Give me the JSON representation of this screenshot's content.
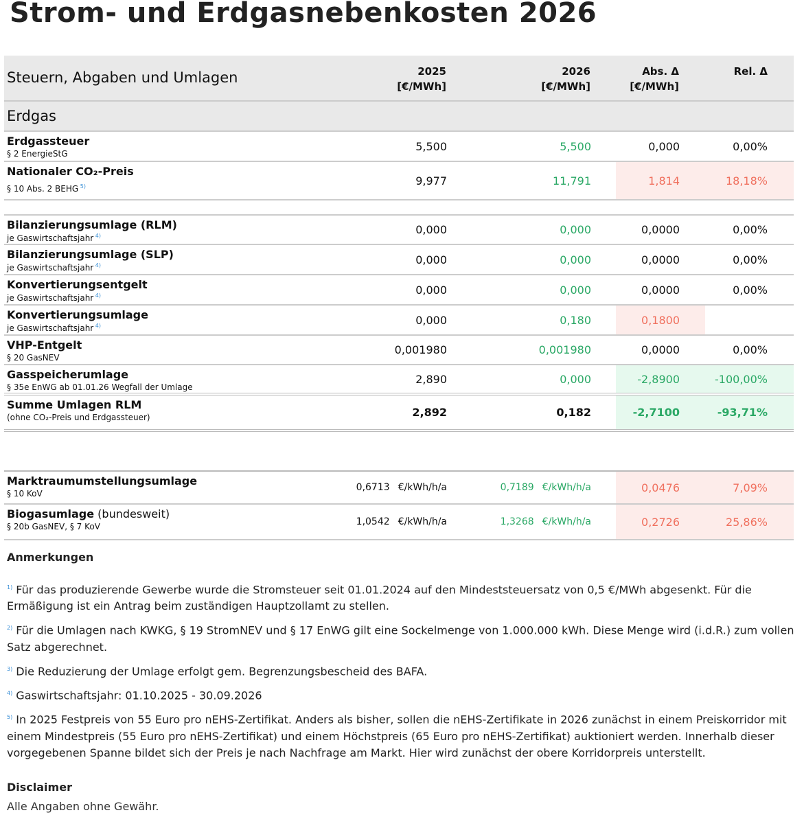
{
  "title": "Strom- und Erdgasnebenkosten 2026",
  "header": {
    "label": "Steuern, Abgaben und Umlagen",
    "col_2025": [
      "2025",
      "[€/MWh]"
    ],
    "col_2026": [
      "2026",
      "[€/MWh]"
    ],
    "col_abs": [
      "Abs. Δ",
      "[€/MWh]"
    ],
    "col_rel": [
      "Rel. Δ"
    ]
  },
  "section": "Erdgas",
  "colors": {
    "green": "#2aa865",
    "red": "#f0705e",
    "red_bg": "#fdecea",
    "green_bg": "#e6f9ee"
  },
  "rows": [
    {
      "title": "Erdgassteuer",
      "sub": "§ 2 EnergieStG",
      "v2025": "5,500",
      "v2026": "5,500",
      "abs": "0,000",
      "rel": "0,00%",
      "trend": ""
    },
    {
      "title": "Nationaler CO₂-Preis",
      "sub": "§ 10 Abs. 2 BEHG",
      "note": "5)",
      "v2025": "9,977",
      "v2026": "11,791",
      "abs": "1,814",
      "rel": "18,18%",
      "trend": "up"
    },
    {
      "spacer": true
    },
    {
      "title": "Bilanzierungsumlage (RLM)",
      "sub": "je Gaswirtschaftsjahr",
      "note": "4)",
      "v2025": "0,000",
      "v2026": "0,000",
      "abs": "0,0000",
      "rel": "0,00%",
      "trend": ""
    },
    {
      "title": "Bilanzierungsumlage (SLP)",
      "sub": "je Gaswirtschaftsjahr",
      "note": "4)",
      "v2025": "0,000",
      "v2026": "0,000",
      "abs": "0,0000",
      "rel": "0,00%",
      "trend": ""
    },
    {
      "title": "Konvertierungsentgelt",
      "sub": "je Gaswirtschaftsjahr",
      "note": "4)",
      "v2025": "0,000",
      "v2026": "0,000",
      "abs": "0,0000",
      "rel": "0,00%",
      "trend": ""
    },
    {
      "title": "Konvertierungsumlage",
      "sub": "je Gaswirtschaftsjahr",
      "note": "4)",
      "v2025": "0,000",
      "v2026": "0,180",
      "abs": "0,1800",
      "rel": "",
      "trend": "up-abs"
    },
    {
      "title": "VHP-Entgelt",
      "sub": "§ 20 GasNEV",
      "v2025": "0,001980",
      "v2026": "0,001980",
      "abs": "0,0000",
      "rel": "0,00%",
      "trend": ""
    },
    {
      "title": "Gasspeicherumlage",
      "sub": "§ 35e EnWG ab 01.01.26 Wegfall der Umlage",
      "v2025": "2,890",
      "v2026": "0,000",
      "abs": "-2,8900",
      "rel": "-100,00%",
      "trend": "down"
    },
    {
      "title": "Summe Umlagen RLM",
      "sub": "(ohne CO₂-Preis und Erdgassteuer)",
      "v2025": "2,892",
      "v2026": "0,182",
      "abs": "-2,7100",
      "rel": "-93,71%",
      "trend": "down",
      "sum": true
    },
    {
      "spacer": true
    },
    {
      "title": "Marktraumumstellungsumlage",
      "sub": "§ 10 KoV",
      "v2025": "0,6713",
      "v2026": "0,7189",
      "unit": "€/kWh/h/a",
      "abs": "0,0476",
      "rel": "7,09%",
      "trend": "up"
    },
    {
      "title": "Biogasumlage",
      "title_extra": " (bundesweit)",
      "sub": "§ 20b GasNEV, § 7 KoV",
      "v2025": "1,0542",
      "v2026": "1,3268",
      "unit": "€/kWh/h/a",
      "abs": "0,2726",
      "rel": "25,86%",
      "trend": "up"
    }
  ],
  "notes": {
    "heading": "Anmerkungen",
    "items": [
      {
        "mark": "1)",
        "text": "Für das produzierende Gewerbe wurde die Stromsteuer seit 01.01.2024 auf den Mindeststeuersatz von 0,5 €/MWh abgesenkt. Für die Ermäßigung ist ein Antrag beim zuständigen Hauptzollamt zu stellen."
      },
      {
        "mark": "2)",
        "text": "Für die Umlagen nach KWKG, § 19 StromNEV und § 17 EnWG gilt eine Sockelmenge von 1.000.000 kWh. Diese Menge wird (i.d.R.) zum vollen Satz abgerechnet."
      },
      {
        "mark": "3)",
        "text": "Die Reduzierung der Umlage erfolgt gem. Begrenzungsbescheid des BAFA."
      },
      {
        "mark": "4)",
        "text": "Gaswirtschaftsjahr: 01.10.2025 - 30.09.2026"
      },
      {
        "mark": "5)",
        "text": "In 2025 Festpreis von 55 Euro pro nEHS-Zertifikat. Anders als bisher, sollen die nEHS-Zertifikate in 2026 zunächst in einem Preiskorridor mit einem Mindestpreis (55 Euro pro nEHS-Zertifikat) und einem Höchstpreis (65 Euro pro nEHS-Zertifikat) auktioniert werden. Innerhalb dieser vorgegebenen Spanne bildet sich der Preis je nach Nachfrage am Markt. Hier wird zunächst der obere Korridorpreis unterstellt."
      }
    ],
    "disclaimer_heading": "Disclaimer",
    "disclaimer": "Alle Angaben ohne Gewähr."
  }
}
